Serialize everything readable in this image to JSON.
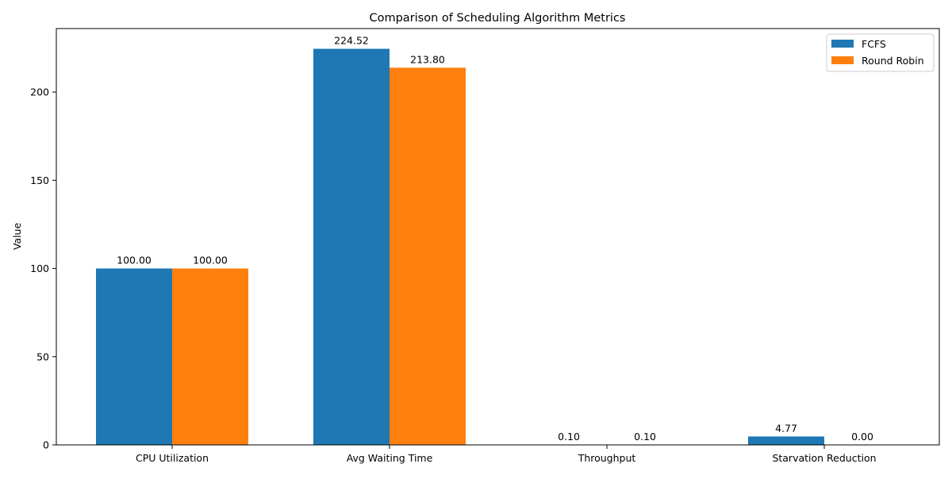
{
  "chart_data": {
    "type": "bar",
    "title": "Comparison of Scheduling Algorithm Metrics",
    "xlabel": "",
    "ylabel": "Value",
    "categories": [
      "CPU Utilization",
      "Avg Waiting Time",
      "Throughput",
      "Starvation Reduction"
    ],
    "series": [
      {
        "name": "FCFS",
        "color": "#1f77b4",
        "values": [
          100.0,
          224.52,
          0.1,
          4.77
        ],
        "labels": [
          "100.00",
          "224.52",
          "0.10",
          "4.77"
        ]
      },
      {
        "name": "Round Robin",
        "color": "#ff7f0e",
        "values": [
          100.0,
          213.8,
          0.1,
          0.0
        ],
        "labels": [
          "100.00",
          "213.80",
          "0.10",
          "0.00"
        ]
      }
    ],
    "ylim": [
      0,
      236
    ],
    "yticks": [
      0,
      50,
      100,
      150,
      200
    ],
    "grid": false,
    "legend_position": "top-right"
  }
}
